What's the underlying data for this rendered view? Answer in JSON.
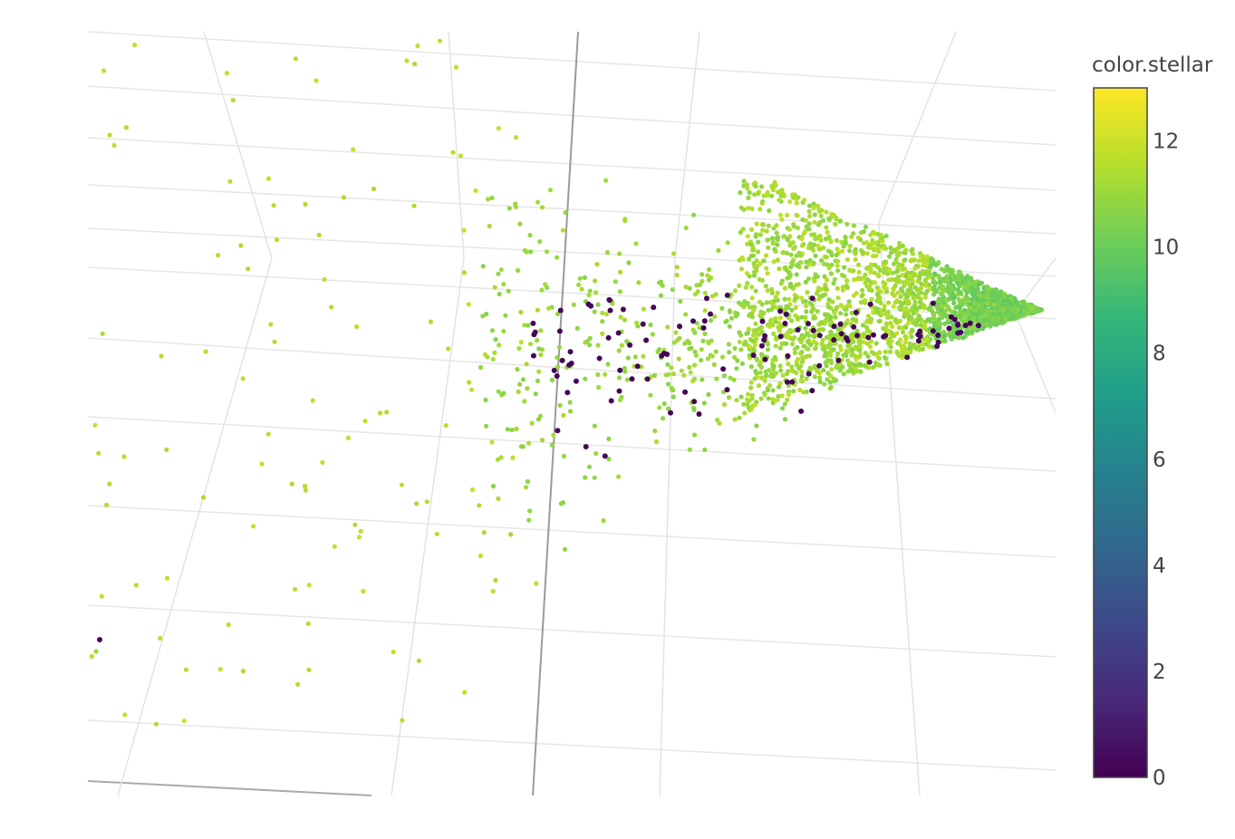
{
  "chart_data": {
    "type": "scatter",
    "projection": "3d",
    "title": "",
    "axes_labels_shown": false,
    "grid": true,
    "colorbar": {
      "title": "color.stellar",
      "colorscale": "Viridis",
      "range": [
        0,
        13
      ],
      "ticks": [
        0,
        2,
        4,
        6,
        8,
        10,
        12
      ],
      "tick_labels": [
        "0",
        "2",
        "4",
        "6",
        "8",
        "10",
        "12"
      ],
      "colors": [
        "#440154",
        "#482878",
        "#3e4989",
        "#31688e",
        "#26828e",
        "#1f9e89",
        "#35b779",
        "#6ece58",
        "#b5de2b",
        "#fde725"
      ]
    },
    "series": [
      {
        "color_value": 11.2,
        "point_count_approx": 3000,
        "note_values": [
          10.5,
          11.8
        ]
      },
      {
        "color_value": 0.2,
        "point_count_approx": 110
      }
    ]
  }
}
